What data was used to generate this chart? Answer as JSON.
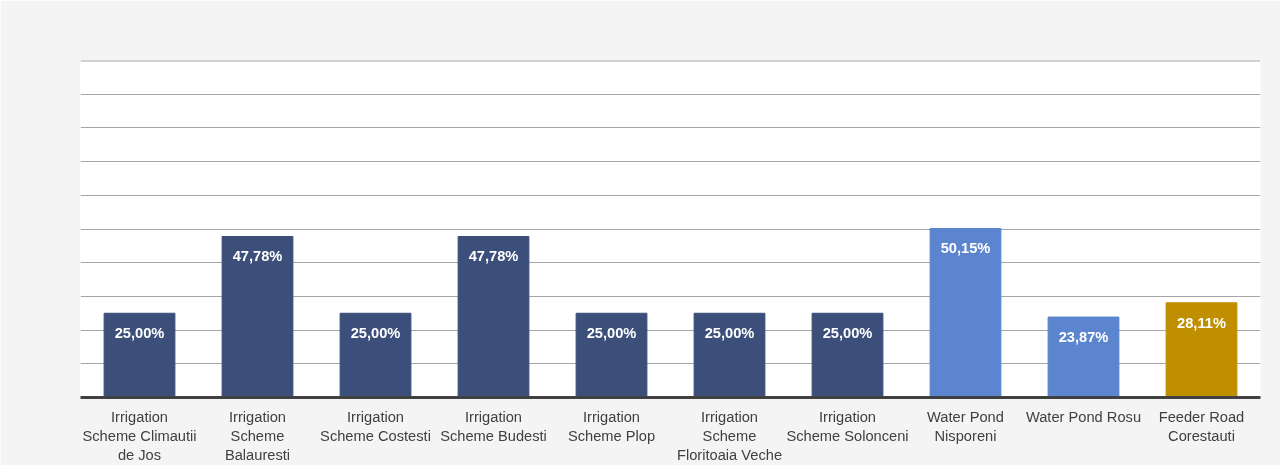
{
  "chart_data": {
    "type": "bar",
    "categories": [
      "Irrigation Scheme Climautii de Jos",
      "Irrigation Scheme Balauresti",
      "Irrigation Scheme Costesti",
      "Irrigation Scheme Budesti",
      "Irrigation Scheme Plop",
      "Irrigation Scheme Floritoaia Veche",
      "Irrigation Scheme Solonceni",
      "Water Pond Nisporeni",
      "Water Pond Rosu",
      "Feeder Road Corestauti"
    ],
    "values": [
      25.0,
      47.78,
      25.0,
      47.78,
      25.0,
      25.0,
      25.0,
      50.15,
      23.87,
      28.11
    ],
    "colors": [
      "#3c4f7a",
      "#3c4f7a",
      "#3c4f7a",
      "#3c4f7a",
      "#3c4f7a",
      "#3c4f7a",
      "#3c4f7a",
      "#5b86cf",
      "#5b86cf",
      "#bf8f00"
    ],
    "value_labels": [
      "25,00%",
      "47,78%",
      "25,00%",
      "47,78%",
      "25,00%",
      "25,00%",
      "25,00%",
      "50,15%",
      "23,87%",
      "28,11%"
    ],
    "ylim": [
      0,
      100
    ],
    "yticks": [
      {
        "value": 0,
        "label": null
      },
      {
        "value": 10,
        "label": null
      },
      {
        "value": 20,
        "label": null
      },
      {
        "value": 30,
        "label": null
      },
      {
        "value": 40,
        "label": null
      },
      {
        "value": 50,
        "label": null
      },
      {
        "value": 60,
        "label": null
      },
      {
        "value": 70,
        "label": null
      },
      {
        "value": 80,
        "label": null
      },
      {
        "value": 90,
        "label": null
      },
      {
        "value": 100,
        "label": null
      }
    ],
    "grid": "y",
    "tick_labels": "x"
  }
}
